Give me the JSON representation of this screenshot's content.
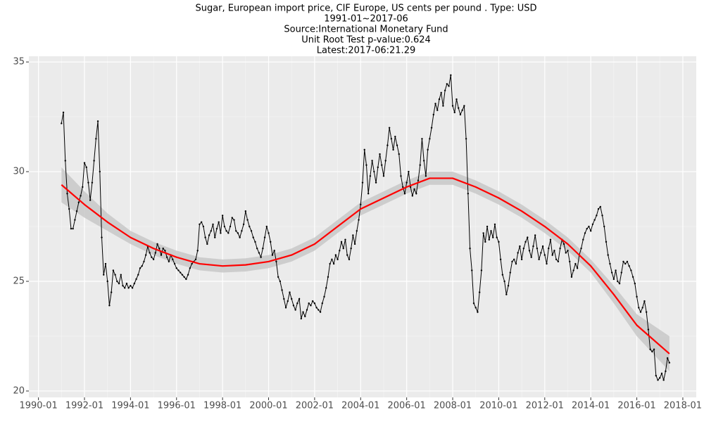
{
  "chart_data": {
    "type": "line",
    "title": "Sugar, European import price, CIF Europe, US cents per pound . Type: USD",
    "subtitle": [
      "1991-01~2017-06",
      "Source:International Monetary Fund",
      "Unit Root Test p-value:0.624",
      "Latest:2017-06:21.29"
    ],
    "x": [
      "1991-01",
      "1991-02",
      "1991-03",
      "1991-04",
      "1991-05",
      "1991-06",
      "1991-07",
      "1991-08",
      "1991-09",
      "1991-10",
      "1991-11",
      "1991-12",
      "1992-01",
      "1992-02",
      "1992-03",
      "1992-04",
      "1992-05",
      "1992-06",
      "1992-07",
      "1992-08",
      "1992-09",
      "1992-10",
      "1992-11",
      "1992-12",
      "1993-01",
      "1993-02",
      "1993-03",
      "1993-04",
      "1993-05",
      "1993-06",
      "1993-07",
      "1993-08",
      "1993-09",
      "1993-10",
      "1993-11",
      "1993-12",
      "1994-01",
      "1994-02",
      "1994-03",
      "1994-04",
      "1994-05",
      "1994-06",
      "1994-07",
      "1994-08",
      "1994-09",
      "1994-10",
      "1994-11",
      "1994-12",
      "1995-01",
      "1995-02",
      "1995-03",
      "1995-04",
      "1995-05",
      "1995-06",
      "1995-07",
      "1995-08",
      "1995-09",
      "1995-10",
      "1995-11",
      "1995-12",
      "1996-01",
      "1996-02",
      "1996-03",
      "1996-04",
      "1996-05",
      "1996-06",
      "1996-07",
      "1996-08",
      "1996-09",
      "1996-10",
      "1996-11",
      "1996-12",
      "1997-01",
      "1997-02",
      "1997-03",
      "1997-04",
      "1997-05",
      "1997-06",
      "1997-07",
      "1997-08",
      "1997-09",
      "1997-10",
      "1997-11",
      "1997-12",
      "1998-01",
      "1998-02",
      "1998-03",
      "1998-04",
      "1998-05",
      "1998-06",
      "1998-07",
      "1998-08",
      "1998-09",
      "1998-10",
      "1998-11",
      "1998-12",
      "1999-01",
      "1999-02",
      "1999-03",
      "1999-04",
      "1999-05",
      "1999-06",
      "1999-07",
      "1999-08",
      "1999-09",
      "1999-10",
      "1999-11",
      "1999-12",
      "2000-01",
      "2000-02",
      "2000-03",
      "2000-04",
      "2000-05",
      "2000-06",
      "2000-07",
      "2000-08",
      "2000-09",
      "2000-10",
      "2000-11",
      "2000-12",
      "2001-01",
      "2001-02",
      "2001-03",
      "2001-04",
      "2001-05",
      "2001-06",
      "2001-07",
      "2001-08",
      "2001-09",
      "2001-10",
      "2001-11",
      "2001-12",
      "2002-01",
      "2002-02",
      "2002-03",
      "2002-04",
      "2002-05",
      "2002-06",
      "2002-07",
      "2002-08",
      "2002-09",
      "2002-10",
      "2002-11",
      "2002-12",
      "2003-01",
      "2003-02",
      "2003-03",
      "2003-04",
      "2003-05",
      "2003-06",
      "2003-07",
      "2003-08",
      "2003-09",
      "2003-10",
      "2003-11",
      "2003-12",
      "2004-01",
      "2004-02",
      "2004-03",
      "2004-04",
      "2004-05",
      "2004-06",
      "2004-07",
      "2004-08",
      "2004-09",
      "2004-10",
      "2004-11",
      "2004-12",
      "2005-01",
      "2005-02",
      "2005-03",
      "2005-04",
      "2005-05",
      "2005-06",
      "2005-07",
      "2005-08",
      "2005-09",
      "2005-10",
      "2005-11",
      "2005-12",
      "2006-01",
      "2006-02",
      "2006-03",
      "2006-04",
      "2006-05",
      "2006-06",
      "2006-07",
      "2006-08",
      "2006-09",
      "2006-10",
      "2006-11",
      "2006-12",
      "2007-01",
      "2007-02",
      "2007-03",
      "2007-04",
      "2007-05",
      "2007-06",
      "2007-07",
      "2007-08",
      "2007-09",
      "2007-10",
      "2007-11",
      "2007-12",
      "2008-01",
      "2008-02",
      "2008-03",
      "2008-04",
      "2008-05",
      "2008-06",
      "2008-07",
      "2008-08",
      "2008-09",
      "2008-10",
      "2008-11",
      "2008-12",
      "2009-01",
      "2009-02",
      "2009-03",
      "2009-04",
      "2009-05",
      "2009-06",
      "2009-07",
      "2009-08",
      "2009-09",
      "2009-10",
      "2009-11",
      "2009-12",
      "2010-01",
      "2010-02",
      "2010-03",
      "2010-04",
      "2010-05",
      "2010-06",
      "2010-07",
      "2010-08",
      "2010-09",
      "2010-10",
      "2010-11",
      "2010-12",
      "2011-01",
      "2011-02",
      "2011-03",
      "2011-04",
      "2011-05",
      "2011-06",
      "2011-07",
      "2011-08",
      "2011-09",
      "2011-10",
      "2011-11",
      "2011-12",
      "2012-01",
      "2012-02",
      "2012-03",
      "2012-04",
      "2012-05",
      "2012-06",
      "2012-07",
      "2012-08",
      "2012-09",
      "2012-10",
      "2012-11",
      "2012-12",
      "2013-01",
      "2013-02",
      "2013-03",
      "2013-04",
      "2013-05",
      "2013-06",
      "2013-07",
      "2013-08",
      "2013-09",
      "2013-10",
      "2013-11",
      "2013-12",
      "2014-01",
      "2014-02",
      "2014-03",
      "2014-04",
      "2014-05",
      "2014-06",
      "2014-07",
      "2014-08",
      "2014-09",
      "2014-10",
      "2014-11",
      "2014-12",
      "2015-01",
      "2015-02",
      "2015-03",
      "2015-04",
      "2015-05",
      "2015-06",
      "2015-07",
      "2015-08",
      "2015-09",
      "2015-10",
      "2015-11",
      "2015-12",
      "2016-01",
      "2016-02",
      "2016-03",
      "2016-04",
      "2016-05",
      "2016-06",
      "2016-07",
      "2016-08",
      "2016-09",
      "2016-10",
      "2016-11",
      "2016-12",
      "2017-01",
      "2017-02",
      "2017-03",
      "2017-04",
      "2017-05",
      "2017-06"
    ],
    "series": [
      {
        "color": "#000000",
        "values": [
          32.2,
          32.7,
          30.5,
          29.0,
          28.3,
          27.4,
          27.4,
          27.8,
          28.2,
          28.6,
          28.9,
          29.3,
          30.4,
          30.2,
          29.5,
          28.7,
          29.5,
          30.5,
          31.5,
          32.3,
          30.0,
          27.0,
          25.3,
          25.8,
          25.0,
          23.9,
          24.5,
          25.5,
          25.3,
          25.0,
          24.9,
          25.3,
          24.8,
          24.7,
          24.9,
          24.7,
          24.8,
          24.7,
          24.9,
          25.1,
          25.3,
          25.6,
          25.7,
          25.9,
          26.2,
          26.6,
          26.3,
          26.1,
          26.0,
          26.3,
          26.7,
          26.5,
          26.2,
          26.5,
          26.4,
          26.1,
          25.9,
          26.2,
          26.0,
          25.8,
          25.6,
          25.5,
          25.4,
          25.3,
          25.2,
          25.1,
          25.3,
          25.6,
          25.8,
          25.9,
          26.0,
          26.4,
          27.6,
          27.7,
          27.5,
          27.0,
          26.7,
          27.1,
          27.3,
          27.6,
          27.0,
          27.4,
          27.7,
          27.2,
          28.0,
          27.5,
          27.3,
          27.2,
          27.5,
          27.9,
          27.8,
          27.3,
          27.2,
          27.0,
          27.3,
          27.6,
          28.2,
          27.8,
          27.5,
          27.3,
          27.0,
          26.8,
          26.5,
          26.3,
          26.1,
          26.5,
          27.0,
          27.5,
          27.2,
          26.8,
          26.2,
          26.4,
          25.9,
          25.2,
          25.0,
          24.6,
          24.2,
          23.8,
          24.1,
          24.5,
          24.2,
          23.9,
          23.7,
          24.0,
          24.2,
          23.3,
          23.6,
          23.4,
          23.7,
          24.0,
          23.9,
          24.1,
          24.0,
          23.8,
          23.7,
          23.6,
          24.0,
          24.3,
          24.7,
          25.2,
          25.8,
          26.0,
          25.8,
          26.2,
          26.0,
          26.4,
          26.8,
          26.5,
          26.9,
          26.2,
          26.0,
          26.5,
          27.1,
          26.7,
          27.3,
          27.8,
          28.5,
          29.5,
          31.0,
          30.3,
          29.0,
          29.8,
          30.5,
          30.0,
          29.5,
          30.2,
          30.8,
          30.3,
          29.8,
          30.5,
          31.2,
          32.0,
          31.5,
          31.0,
          31.6,
          31.2,
          30.8,
          29.8,
          29.3,
          29.0,
          29.5,
          30.0,
          29.3,
          28.9,
          29.2,
          29.0,
          29.6,
          30.3,
          31.5,
          30.5,
          29.8,
          31.0,
          31.5,
          32.0,
          32.6,
          33.1,
          32.8,
          33.3,
          33.6,
          33.0,
          33.7,
          34.0,
          33.9,
          34.4,
          33.0,
          32.7,
          33.3,
          32.9,
          32.6,
          32.8,
          33.0,
          31.5,
          29.0,
          26.5,
          25.5,
          24.0,
          23.8,
          23.6,
          24.5,
          25.5,
          27.2,
          26.8,
          27.5,
          26.9,
          27.3,
          27.0,
          27.6,
          27.0,
          26.8,
          26.0,
          25.3,
          25.0,
          24.4,
          24.8,
          25.4,
          25.9,
          26.0,
          25.8,
          26.3,
          26.6,
          26.0,
          26.5,
          26.8,
          27.0,
          26.4,
          26.1,
          26.6,
          27.1,
          26.5,
          26.0,
          26.3,
          26.6,
          26.2,
          25.8,
          26.5,
          26.9,
          26.2,
          26.4,
          26.0,
          25.9,
          26.5,
          26.9,
          26.7,
          26.3,
          26.4,
          25.9,
          25.2,
          25.5,
          25.8,
          25.6,
          26.2,
          26.5,
          26.9,
          27.2,
          27.4,
          27.5,
          27.3,
          27.6,
          27.8,
          28.0,
          28.3,
          28.4,
          28.0,
          27.5,
          26.8,
          26.2,
          25.8,
          25.4,
          25.1,
          25.5,
          25.0,
          24.9,
          25.4,
          25.9,
          25.8,
          25.9,
          25.7,
          25.5,
          25.2,
          24.9,
          24.3,
          23.8,
          23.6,
          23.8,
          24.1,
          23.6,
          22.8,
          21.9,
          21.8,
          21.9,
          20.7,
          20.5,
          20.6,
          20.8,
          20.5,
          20.9,
          21.5,
          21.29
        ]
      }
    ],
    "smooth": {
      "color": "#ff0000",
      "band_color": "#c8c8c8",
      "x": [
        "1991-01",
        "1992-01",
        "1993-01",
        "1994-01",
        "1995-01",
        "1996-01",
        "1997-01",
        "1998-01",
        "1999-01",
        "2000-01",
        "2001-01",
        "2002-01",
        "2003-01",
        "2004-01",
        "2005-01",
        "2006-01",
        "2007-01",
        "2008-01",
        "2009-01",
        "2010-01",
        "2011-01",
        "2012-01",
        "2013-01",
        "2014-01",
        "2015-01",
        "2016-01",
        "2017-06"
      ],
      "values": [
        29.4,
        28.5,
        27.7,
        27.0,
        26.5,
        26.1,
        25.8,
        25.7,
        25.75,
        25.9,
        26.2,
        26.7,
        27.5,
        28.3,
        28.8,
        29.3,
        29.7,
        29.7,
        29.3,
        28.8,
        28.2,
        27.5,
        26.7,
        25.7,
        24.4,
        23.0,
        21.7
      ],
      "lower": [
        28.6,
        27.9,
        27.3,
        26.7,
        26.2,
        25.8,
        25.5,
        25.4,
        25.45,
        25.6,
        25.9,
        26.4,
        27.2,
        28.0,
        28.5,
        29.0,
        29.4,
        29.4,
        29.0,
        28.5,
        27.9,
        27.2,
        26.4,
        25.4,
        24.0,
        22.5,
        20.9
      ],
      "upper": [
        30.2,
        29.1,
        28.1,
        27.3,
        26.8,
        26.4,
        26.1,
        26.0,
        26.05,
        26.2,
        26.5,
        27.0,
        27.8,
        28.6,
        29.1,
        29.6,
        30.0,
        30.0,
        29.6,
        29.1,
        28.5,
        27.8,
        27.0,
        26.0,
        24.8,
        23.5,
        22.5
      ]
    },
    "xlim": [
      "1989-08",
      "2018-08"
    ],
    "xticks": [
      "1990-01",
      "1992-01",
      "1994-01",
      "1996-01",
      "1998-01",
      "2000-01",
      "2002-01",
      "2004-01",
      "2006-01",
      "2008-01",
      "2010-01",
      "2012-01",
      "2014-01",
      "2016-01",
      "2018-01"
    ],
    "ylim": [
      19.71,
      35.26
    ],
    "yticks": [
      20,
      25,
      30,
      35
    ],
    "grid": true
  }
}
